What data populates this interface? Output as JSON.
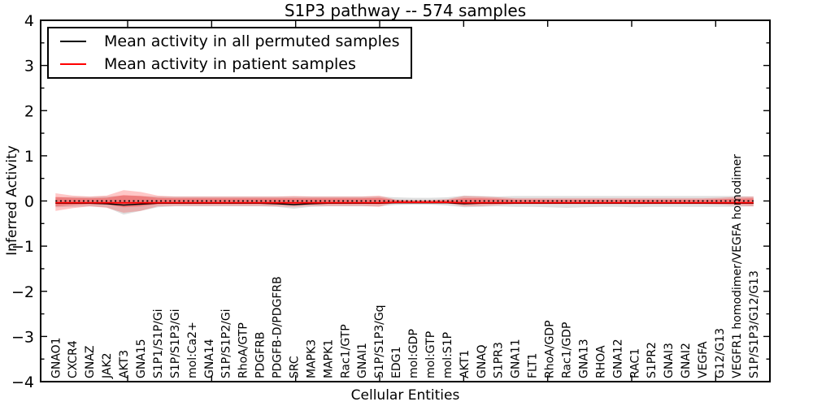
{
  "title": "S1P3 pathway -- 574 samples",
  "legend": {
    "items": [
      {
        "label": "Mean activity in all permuted samples",
        "color": "#000000"
      },
      {
        "label": "Mean activity in patient samples",
        "color": "#ff0000"
      }
    ]
  },
  "chart_data": {
    "type": "line",
    "title": "S1P3 pathway -- 574 samples",
    "xlabel": "Cellular Entities",
    "ylabel": "Inferred Activity",
    "ylim": [
      -4,
      4
    ],
    "y_ticks": [
      4,
      3,
      2,
      1,
      0,
      -1,
      -2,
      -3,
      -4
    ],
    "y_tick_labels": [
      "4",
      "3",
      "2",
      "1",
      "0",
      "−1",
      "−2",
      "−3",
      "−4"
    ],
    "y_minor_tick_step": 0.5,
    "x_axis": {
      "unlabeled_major_ticks": 8,
      "grid": false
    },
    "legend_position": "upper left",
    "categories": [
      "GNAO1",
      "CXCR4",
      "GNAZ",
      "JAK2",
      "AKT3",
      "GNA15",
      "S1P1/S1P/Gi",
      "S1P/S1P3/Gi",
      "mol:Ca2+",
      "GNA14",
      "S1P/S1P2/Gi",
      "RhoA/GTP",
      "PDGFRB",
      "PDGFB-D/PDGFRB",
      "SRC",
      "MAPK3",
      "MAPK1",
      "Rac1/GTP",
      "GNAI1",
      "S1P/S1P3/Gq",
      "EDG1",
      "mol:GDP",
      "mol:GTP",
      "mol:S1P",
      "AKT1",
      "GNAQ",
      "S1PR3",
      "GNA11",
      "FLT1",
      "RhoA/GDP",
      "Rac1/GDP",
      "GNA13",
      "RHOA",
      "GNA12",
      "RAC1",
      "S1PR2",
      "GNAI3",
      "GNAI2",
      "VEGFA",
      "G12/G13",
      "VEGFR1 homodimer/VEGFA homodimer",
      "S1P/S1P3/G12/G13"
    ],
    "zero_reference_line": {
      "y": 0,
      "style": "dotted",
      "color": "#000000"
    },
    "series": [
      {
        "name": "Mean activity in all permuted samples",
        "color": "#000000",
        "values": [
          -0.05,
          -0.05,
          -0.05,
          -0.06,
          -0.09,
          -0.07,
          -0.05,
          -0.05,
          -0.05,
          -0.05,
          -0.05,
          -0.05,
          -0.05,
          -0.06,
          -0.08,
          -0.06,
          -0.05,
          -0.05,
          -0.05,
          -0.05,
          -0.04,
          -0.04,
          -0.04,
          -0.04,
          -0.06,
          -0.05,
          -0.05,
          -0.05,
          -0.05,
          -0.05,
          -0.05,
          -0.05,
          -0.05,
          -0.05,
          -0.05,
          -0.05,
          -0.05,
          -0.05,
          -0.05,
          -0.05,
          -0.05,
          -0.05
        ]
      },
      {
        "name": "Mean activity in patient samples",
        "color": "#ff0000",
        "values": [
          -0.04,
          -0.04,
          -0.04,
          -0.04,
          -0.04,
          -0.04,
          -0.04,
          -0.04,
          -0.04,
          -0.04,
          -0.04,
          -0.04,
          -0.04,
          -0.04,
          -0.04,
          -0.04,
          -0.04,
          -0.04,
          -0.04,
          -0.04,
          -0.03,
          -0.03,
          -0.03,
          -0.03,
          -0.04,
          -0.04,
          -0.04,
          -0.04,
          -0.04,
          -0.04,
          -0.04,
          -0.04,
          -0.04,
          -0.04,
          -0.04,
          -0.04,
          -0.04,
          -0.04,
          -0.04,
          -0.04,
          -0.04,
          -0.04
        ]
      }
    ],
    "bands": [
      {
        "name": "permuted-samples-std-band",
        "color": "#808080",
        "opacity": 0.25,
        "upper": [
          0.08,
          0.09,
          0.09,
          0.1,
          0.12,
          0.11,
          0.1,
          0.1,
          0.1,
          0.1,
          0.1,
          0.1,
          0.1,
          0.1,
          0.1,
          0.1,
          0.1,
          0.1,
          0.1,
          0.1,
          0.08,
          0.07,
          0.07,
          0.08,
          0.12,
          0.11,
          0.1,
          0.11,
          0.11,
          0.11,
          0.11,
          0.11,
          0.11,
          0.11,
          0.11,
          0.11,
          0.11,
          0.11,
          0.11,
          0.11,
          0.11,
          0.1
        ],
        "lower": [
          -0.14,
          -0.13,
          -0.12,
          -0.14,
          -0.3,
          -0.22,
          -0.14,
          -0.12,
          -0.12,
          -0.12,
          -0.12,
          -0.12,
          -0.12,
          -0.13,
          -0.17,
          -0.13,
          -0.12,
          -0.12,
          -0.12,
          -0.12,
          -0.09,
          -0.08,
          -0.08,
          -0.1,
          -0.14,
          -0.13,
          -0.12,
          -0.13,
          -0.13,
          -0.14,
          -0.15,
          -0.14,
          -0.13,
          -0.13,
          -0.14,
          -0.13,
          -0.13,
          -0.13,
          -0.13,
          -0.13,
          -0.13,
          -0.12
        ]
      },
      {
        "name": "patient-samples-outer-band",
        "color": "#ff0000",
        "opacity": 0.22,
        "upper": [
          0.17,
          0.12,
          0.1,
          0.12,
          0.24,
          0.2,
          0.12,
          0.1,
          0.1,
          0.1,
          0.1,
          0.1,
          0.1,
          0.1,
          0.11,
          0.1,
          0.1,
          0.1,
          0.1,
          0.12,
          0.03,
          0.02,
          0.02,
          0.04,
          0.11,
          0.1,
          0.08,
          0.06,
          0.06,
          0.06,
          0.06,
          0.06,
          0.06,
          0.06,
          0.06,
          0.06,
          0.06,
          0.06,
          0.06,
          0.07,
          0.09,
          0.1
        ],
        "lower": [
          -0.22,
          -0.16,
          -0.12,
          -0.15,
          -0.26,
          -0.22,
          -0.12,
          -0.11,
          -0.11,
          -0.11,
          -0.11,
          -0.11,
          -0.11,
          -0.12,
          -0.13,
          -0.11,
          -0.11,
          -0.11,
          -0.11,
          -0.13,
          -0.03,
          -0.02,
          -0.02,
          -0.05,
          -0.12,
          -0.11,
          -0.09,
          -0.07,
          -0.07,
          -0.07,
          -0.07,
          -0.07,
          -0.07,
          -0.07,
          -0.07,
          -0.07,
          -0.07,
          -0.07,
          -0.07,
          -0.08,
          -0.1,
          -0.12
        ]
      },
      {
        "name": "patient-samples-inner-band",
        "color": "#ff0000",
        "opacity": 0.28,
        "upper": [
          0.09,
          0.07,
          0.06,
          0.07,
          0.13,
          0.11,
          0.07,
          0.06,
          0.06,
          0.06,
          0.06,
          0.06,
          0.06,
          0.06,
          0.06,
          0.06,
          0.06,
          0.06,
          0.06,
          0.07,
          0.02,
          0.01,
          0.01,
          0.02,
          0.06,
          0.06,
          0.05,
          0.03,
          0.03,
          0.03,
          0.03,
          0.03,
          0.03,
          0.03,
          0.03,
          0.03,
          0.03,
          0.03,
          0.03,
          0.04,
          0.05,
          0.06
        ],
        "lower": [
          -0.12,
          -0.09,
          -0.07,
          -0.08,
          -0.14,
          -0.12,
          -0.07,
          -0.06,
          -0.06,
          -0.06,
          -0.06,
          -0.06,
          -0.06,
          -0.07,
          -0.07,
          -0.06,
          -0.06,
          -0.06,
          -0.06,
          -0.07,
          -0.02,
          -0.01,
          -0.01,
          -0.03,
          -0.07,
          -0.06,
          -0.05,
          -0.04,
          -0.04,
          -0.04,
          -0.04,
          -0.04,
          -0.04,
          -0.04,
          -0.04,
          -0.04,
          -0.04,
          -0.04,
          -0.04,
          -0.05,
          -0.06,
          -0.07
        ]
      }
    ]
  }
}
